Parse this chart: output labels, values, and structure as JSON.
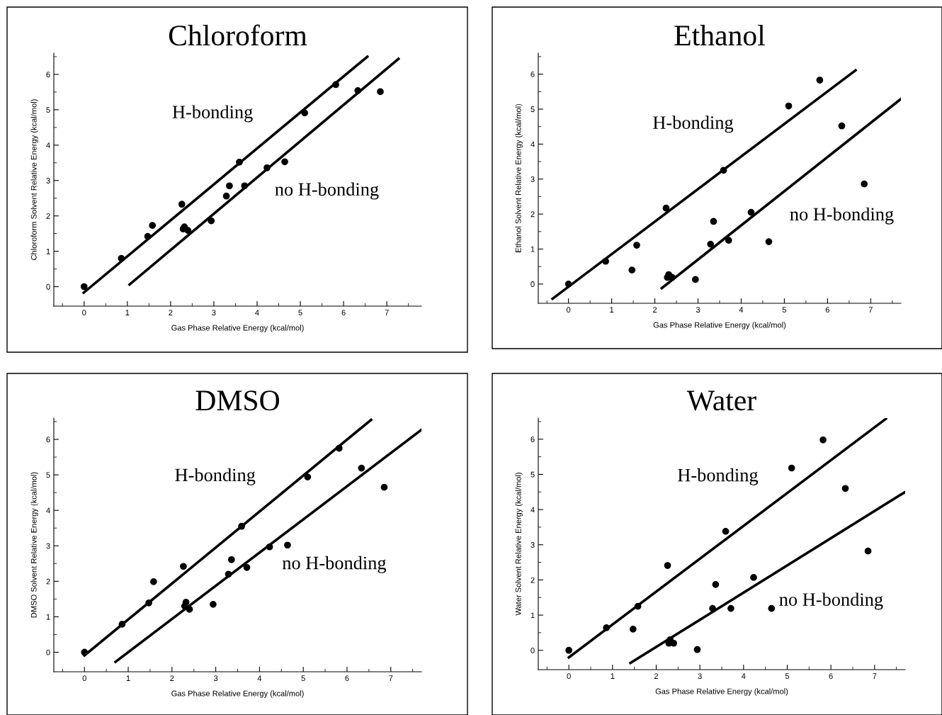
{
  "chart_data": [
    {
      "type": "scatter",
      "title": "Chloroform",
      "xlabel": "Gas Phase Relative Energy (kcal/mol)",
      "ylabel": "Chloroform Solvent Relative Energy (kcal/mol)",
      "xlim": [
        -0.7,
        7.8
      ],
      "ylim": [
        -0.55,
        6.6
      ],
      "xticks": [
        0,
        1,
        2,
        3,
        4,
        5,
        6,
        7
      ],
      "yticks": [
        0,
        1,
        2,
        3,
        4,
        5,
        6
      ],
      "series": [
        {
          "color": "#000000",
          "marker": "circle",
          "x": [
            0,
            0.86,
            1.47,
            1.58,
            2.26,
            2.29,
            2.32,
            2.4,
            2.94,
            3.29,
            3.36,
            3.59,
            3.71,
            4.23,
            4.64,
            5.1,
            5.82,
            6.33,
            6.85
          ],
          "values": [
            0,
            0.8,
            1.42,
            1.73,
            2.33,
            1.63,
            1.69,
            1.59,
            1.86,
            2.56,
            2.85,
            3.52,
            2.85,
            3.36,
            3.53,
            4.91,
            5.71,
            5.54,
            5.51
          ]
        },
        {
          "type": "line",
          "color": "#000000",
          "line_style": "solid",
          "x": [
            -0.01,
            6.55
          ],
          "values": [
            -0.17,
            6.5
          ]
        },
        {
          "type": "line",
          "color": "#000000",
          "line_style": "solid",
          "x": [
            1.05,
            7.27
          ],
          "values": [
            0.06,
            6.44
          ]
        }
      ],
      "annotations": [
        "H-bonding",
        "no H-bonding"
      ]
    },
    {
      "type": "scatter",
      "title": "Ethanol",
      "xlabel": "Gas Phase Relative Energy (kcal/mol)",
      "ylabel": "Ethanol Solvent Relative Energy (kcal/mol)",
      "xlim": [
        -0.7,
        7.7
      ],
      "ylim": [
        -0.55,
        6.6
      ],
      "xticks": [
        0,
        1,
        2,
        3,
        4,
        5,
        6,
        7
      ],
      "yticks": [
        0,
        1,
        2,
        3,
        4,
        5,
        6
      ],
      "series": [
        {
          "color": "#000000",
          "marker": "circle",
          "x": [
            0,
            0.86,
            1.47,
            1.58,
            2.26,
            2.29,
            2.32,
            2.4,
            2.94,
            3.29,
            3.36,
            3.59,
            3.71,
            4.23,
            4.64,
            5.1,
            5.82,
            6.33,
            6.85
          ],
          "values": [
            0,
            0.65,
            0.4,
            1.11,
            2.17,
            0.19,
            0.27,
            0.19,
            0.13,
            1.14,
            1.79,
            3.25,
            1.25,
            2.05,
            1.21,
            5.09,
            5.83,
            4.52,
            2.86
          ]
        },
        {
          "type": "line",
          "color": "#000000",
          "line_style": "solid",
          "x": [
            -0.37,
            6.65
          ],
          "values": [
            -0.42,
            6.11
          ]
        },
        {
          "type": "line",
          "color": "#000000",
          "line_style": "solid",
          "x": [
            2.16,
            7.7
          ],
          "values": [
            -0.12,
            5.29
          ]
        }
      ],
      "annotations": [
        "H-bonding",
        "no H-bonding"
      ]
    },
    {
      "type": "scatter",
      "title": "DMSO",
      "xlabel": "Gas Phase Relative Energy (kcal/mol)",
      "ylabel": "DMSO Solvent Relative Energy (kcal/mol)",
      "xlim": [
        -0.7,
        7.7
      ],
      "ylim": [
        -0.55,
        6.6
      ],
      "xticks": [
        0,
        1,
        2,
        3,
        4,
        5,
        6,
        7
      ],
      "yticks": [
        0,
        1,
        2,
        3,
        4,
        5,
        6
      ],
      "series": [
        {
          "color": "#000000",
          "marker": "circle",
          "x": [
            0,
            0.86,
            1.47,
            1.58,
            2.26,
            2.29,
            2.32,
            2.4,
            2.94,
            3.29,
            3.36,
            3.59,
            3.71,
            4.23,
            4.64,
            5.1,
            5.82,
            6.33,
            6.85
          ],
          "values": [
            0,
            0.79,
            1.39,
            1.99,
            2.42,
            1.3,
            1.41,
            1.21,
            1.35,
            2.2,
            2.61,
            3.55,
            2.39,
            2.97,
            3.02,
            4.94,
            5.75,
            5.19,
            4.65
          ]
        },
        {
          "type": "line",
          "color": "#000000",
          "line_style": "solid",
          "x": [
            0,
            6.55
          ],
          "values": [
            -0.09,
            6.55
          ]
        },
        {
          "type": "line",
          "color": "#000000",
          "line_style": "solid",
          "x": [
            0.71,
            7.7
          ],
          "values": [
            -0.27,
            6.27
          ]
        }
      ],
      "annotations": [
        "H-bonding",
        "no H-bonding"
      ]
    },
    {
      "type": "scatter",
      "title": "Water",
      "xlabel": "Gas Phase Relative Energy (kcal/mol)",
      "ylabel": "Water Solvent Relative Energy (kcal/mol)",
      "xlim": [
        -0.7,
        7.7
      ],
      "ylim": [
        -0.55,
        6.6
      ],
      "xticks": [
        0,
        1,
        2,
        3,
        4,
        5,
        6,
        7
      ],
      "yticks": [
        0,
        1,
        2,
        3,
        4,
        5,
        6
      ],
      "series": [
        {
          "color": "#000000",
          "marker": "circle",
          "x": [
            0,
            0.86,
            1.47,
            1.58,
            2.26,
            2.29,
            2.32,
            2.4,
            2.94,
            3.29,
            3.36,
            3.59,
            3.71,
            4.23,
            4.64,
            5.1,
            5.82,
            6.33,
            6.85
          ],
          "values": [
            0,
            0.64,
            0.6,
            1.25,
            2.41,
            0.2,
            0.3,
            0.2,
            0.02,
            1.19,
            1.87,
            3.38,
            1.19,
            2.07,
            1.19,
            5.18,
            5.98,
            4.6,
            2.82
          ]
        },
        {
          "type": "line",
          "color": "#000000",
          "line_style": "solid",
          "x": [
            0,
            7.26
          ],
          "values": [
            -0.2,
            6.58
          ]
        },
        {
          "type": "line",
          "color": "#000000",
          "line_style": "solid",
          "x": [
            1.41,
            7.7
          ],
          "values": [
            -0.36,
            4.5
          ]
        }
      ],
      "annotations": [
        "H-bonding",
        "no H-bonding"
      ]
    }
  ]
}
